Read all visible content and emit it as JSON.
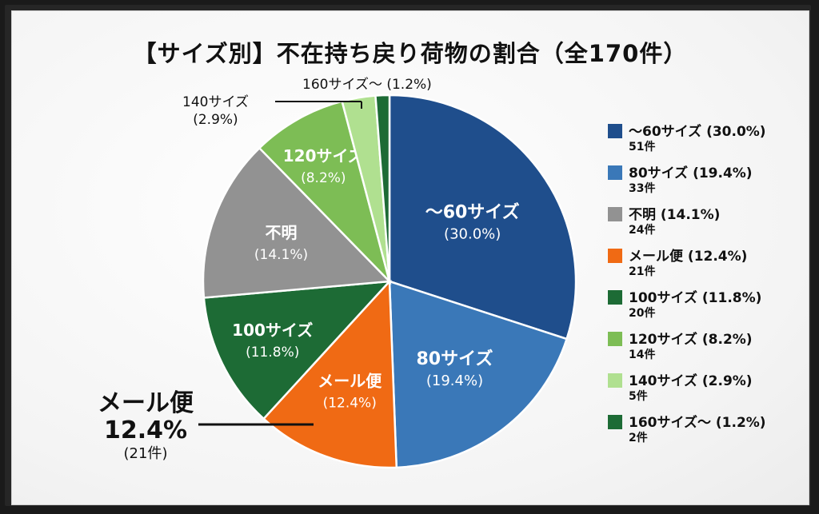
{
  "title": "【サイズ別】不在持ち戻り荷物の割合（全170件）",
  "colors": {
    "s60": "#1f4e8c",
    "s80": "#3a78b8",
    "unknown": "#929292",
    "mail": "#f06a14",
    "s100": "#1d6b35",
    "s120": "#7dbd55",
    "s140": "#b0e090",
    "s160": "#1d6b35"
  },
  "chart_data": {
    "type": "pie",
    "title": "【サイズ別】不在持ち戻り荷物の割合（全170件）",
    "total": 170,
    "slices": [
      {
        "name": "～60サイズ",
        "percent": 30.0,
        "count": 51,
        "percent_label": "(30.0%)",
        "legend_label": "～60サイズ (30.0%)",
        "count_label": "51件"
      },
      {
        "name": "80サイズ",
        "percent": 19.4,
        "count": 33,
        "percent_label": "(19.4%)",
        "legend_label": "80サイズ (19.4%)",
        "count_label": "33件"
      },
      {
        "name": "メール便",
        "percent": 12.4,
        "count": 21,
        "percent_label": "(12.4%)",
        "legend_label": "メール便 (12.4%)",
        "count_label": "21件"
      },
      {
        "name": "100サイズ",
        "percent": 11.8,
        "count": 20,
        "percent_label": "(11.8%)",
        "legend_label": "100サイズ (11.8%)",
        "count_label": "20件"
      },
      {
        "name": "不明",
        "percent": 14.1,
        "count": 24,
        "percent_label": "(14.1%)",
        "legend_label": "不明 (14.1%)",
        "count_label": "24件"
      },
      {
        "name": "120サイズ",
        "percent": 8.2,
        "count": 14,
        "percent_label": "(8.2%)",
        "legend_label": "120サイズ (8.2%)",
        "count_label": "14件"
      },
      {
        "name": "140サイズ",
        "percent": 2.9,
        "count": 5,
        "percent_label": "(2.9%)",
        "legend_label": "140サイズ (2.9%)",
        "count_label": "5件"
      },
      {
        "name": "160サイズ～",
        "percent": 1.2,
        "count": 2,
        "percent_label": "(1.2%)",
        "legend_label": "160サイズ～ (1.2%)",
        "count_label": "2件"
      }
    ],
    "legend_order": [
      "～60サイズ",
      "80サイズ",
      "不明",
      "メール便",
      "100サイズ",
      "120サイズ",
      "140サイズ",
      "160サイズ～"
    ],
    "legend_position": "right",
    "outside_labels": {
      "s140_name": "140サイズ",
      "s140_pct": "(2.9%)",
      "s160_name": "160サイズ～",
      "s160_pct": "(1.2%)"
    },
    "callout": {
      "label": "メール便",
      "percent": "12.4%",
      "count": "(21件)"
    }
  }
}
